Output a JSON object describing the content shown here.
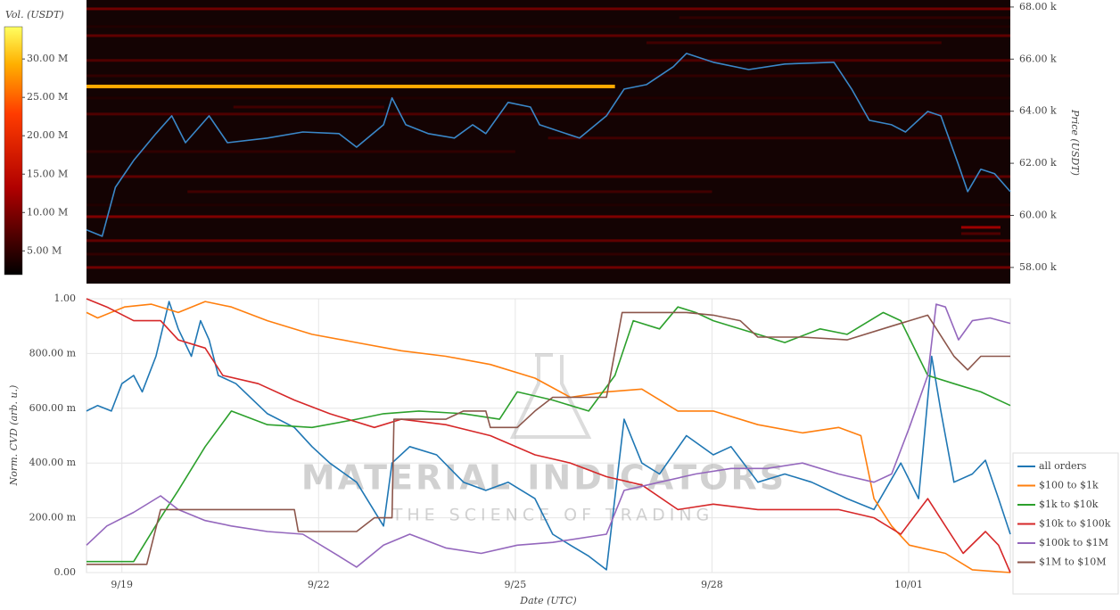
{
  "chart_data": [
    {
      "type": "heatmap",
      "y_label": "Price (USDT)",
      "xlim": [
        -0.54,
        13.55
      ],
      "ylim": [
        57380,
        68270
      ],
      "yticks": [
        {
          "value": 58000,
          "label": "58.00 k"
        },
        {
          "value": 60000,
          "label": "60.00 k"
        },
        {
          "value": 62000,
          "label": "62.00 k"
        },
        {
          "value": 64000,
          "label": "64.00 k"
        },
        {
          "value": 66000,
          "label": "66.00 k"
        },
        {
          "value": 68000,
          "label": "68.00 k"
        }
      ],
      "colorbar": {
        "title": "Vol. (USDT)",
        "clim": [
          1900000,
          34200000
        ],
        "ticks": [
          {
            "value": 5000000,
            "label": "5.00 M"
          },
          {
            "value": 10000000,
            "label": "10.00 M"
          },
          {
            "value": 15000000,
            "label": "15.00 M"
          },
          {
            "value": 20000000,
            "label": "20.00 M"
          },
          {
            "value": 25000000,
            "label": "25.00 M"
          },
          {
            "value": 30000000,
            "label": "30.00 M"
          }
        ]
      },
      "bands": [
        {
          "price": 67930,
          "volume": 9000000,
          "x": [
            -0.54,
            13.55
          ]
        },
        {
          "price": 67590,
          "volume": 5000000,
          "x": [
            8.5,
            13.55
          ]
        },
        {
          "price": 67250,
          "volume": 4000000,
          "x": [
            -0.54,
            13.55
          ]
        },
        {
          "price": 66900,
          "volume": 8000000,
          "x": [
            -0.54,
            13.55
          ]
        },
        {
          "price": 66630,
          "volume": 6000000,
          "x": [
            8.0,
            12.5
          ]
        },
        {
          "price": 65950,
          "volume": 7000000,
          "x": [
            -0.54,
            13.55
          ]
        },
        {
          "price": 65360,
          "volume": 5000000,
          "x": [
            -0.54,
            13.55
          ]
        },
        {
          "price": 64950,
          "volume": 29000000,
          "x": [
            -0.54,
            7.52
          ]
        },
        {
          "price": 64510,
          "volume": 4000000,
          "x": [
            -0.54,
            13.55
          ]
        },
        {
          "price": 64160,
          "volume": 6000000,
          "x": [
            1.7,
            4.0
          ]
        },
        {
          "price": 63890,
          "volume": 7000000,
          "x": [
            -0.54,
            13.55
          ]
        },
        {
          "price": 62970,
          "volume": 6000000,
          "x": [
            6.5,
            13.55
          ]
        },
        {
          "price": 62450,
          "volume": 5000000,
          "x": [
            -0.54,
            6.0
          ]
        },
        {
          "price": 61490,
          "volume": 8000000,
          "x": [
            -0.54,
            13.55
          ]
        },
        {
          "price": 60910,
          "volume": 6000000,
          "x": [
            1.0,
            9.0
          ]
        },
        {
          "price": 60400,
          "volume": 4000000,
          "x": [
            -0.54,
            13.55
          ]
        },
        {
          "price": 59950,
          "volume": 10000000,
          "x": [
            -0.54,
            13.55
          ]
        },
        {
          "price": 59540,
          "volume": 12000000,
          "x": [
            12.8,
            13.4
          ]
        },
        {
          "price": 59300,
          "volume": 7000000,
          "x": [
            12.8,
            13.4
          ]
        },
        {
          "price": 59030,
          "volume": 8000000,
          "x": [
            -0.54,
            13.55
          ]
        },
        {
          "price": 58510,
          "volume": 5000000,
          "x": [
            -0.54,
            13.55
          ]
        },
        {
          "price": 58000,
          "volume": 9000000,
          "x": [
            -0.54,
            13.55
          ]
        }
      ],
      "series": [
        {
          "color": "#3a87c8",
          "x": [
            -0.54,
            -0.3,
            -0.1,
            0.18,
            0.52,
            0.76,
            0.97,
            1.33,
            1.61,
            2.22,
            2.76,
            3.31,
            3.58,
            3.99,
            4.12,
            4.33,
            4.67,
            5.07,
            5.35,
            5.55,
            5.89,
            6.23,
            6.37,
            6.98,
            7.39,
            7.66,
            8.0,
            8.41,
            8.61,
            9.02,
            9.56,
            10.11,
            10.86,
            11.13,
            11.4,
            11.74,
            11.95,
            12.29,
            12.49,
            12.76,
            12.9,
            13.1,
            13.31,
            13.55
          ],
          "values": [
            59440,
            59200,
            61080,
            62110,
            63140,
            63820,
            62790,
            63820,
            62790,
            62970,
            63200,
            63140,
            62620,
            63480,
            64510,
            63480,
            63140,
            62970,
            63480,
            63140,
            64340,
            64160,
            63480,
            62970,
            63820,
            64850,
            65020,
            65710,
            66220,
            65880,
            65600,
            65810,
            65880,
            64850,
            63650,
            63480,
            63200,
            63990,
            63820,
            61940,
            60910,
            61770,
            61600,
            60910
          ]
        }
      ]
    },
    {
      "type": "line",
      "x_label": "Date (UTC)",
      "y_label": "Norm. CVD (arb. u.)",
      "xlim": [
        -0.54,
        13.55
      ],
      "ylim": [
        0,
        1
      ],
      "xticks": [
        {
          "value": 0,
          "label": "9/19"
        },
        {
          "value": 3,
          "label": "9/22"
        },
        {
          "value": 6,
          "label": "9/25"
        },
        {
          "value": 9,
          "label": "9/28"
        },
        {
          "value": 12,
          "label": "10/01"
        }
      ],
      "yticks": [
        {
          "value": 0,
          "label": "0.00"
        },
        {
          "value": 0.2,
          "label": "200.00 m"
        },
        {
          "value": 0.4,
          "label": "400.00 m"
        },
        {
          "value": 0.6,
          "label": "600.00 m"
        },
        {
          "value": 0.8,
          "label": "800.00 m"
        },
        {
          "value": 1,
          "label": "1.00"
        }
      ],
      "grid": true,
      "legend": "right",
      "watermark": [
        "MATERIAL INDICATORS",
        "THE SCIENCE OF TRADING"
      ],
      "series": [
        {
          "name": "all orders",
          "color": "#1f77b4",
          "x": [
            -0.54,
            -0.37,
            -0.16,
            0,
            0.18,
            0.31,
            0.52,
            0.72,
            0.86,
            1.06,
            1.2,
            1.33,
            1.47,
            1.74,
            2.22,
            2.63,
            2.9,
            3.17,
            3.58,
            3.99,
            4.12,
            4.39,
            4.8,
            5.21,
            5.55,
            5.89,
            6.3,
            6.57,
            6.84,
            7.12,
            7.39,
            7.66,
            7.93,
            8.2,
            8.61,
            9.02,
            9.29,
            9.7,
            10.11,
            10.52,
            11.06,
            11.47,
            11.88,
            12.15,
            12.35,
            12.49,
            12.69,
            12.97,
            13.17,
            13.37,
            13.55
          ],
          "values": [
            0.59,
            0.61,
            0.59,
            0.69,
            0.72,
            0.66,
            0.79,
            0.99,
            0.89,
            0.79,
            0.92,
            0.85,
            0.72,
            0.69,
            0.58,
            0.53,
            0.46,
            0.4,
            0.33,
            0.17,
            0.4,
            0.46,
            0.43,
            0.33,
            0.3,
            0.33,
            0.27,
            0.14,
            0.1,
            0.06,
            0.01,
            0.56,
            0.4,
            0.36,
            0.5,
            0.43,
            0.46,
            0.33,
            0.36,
            0.33,
            0.27,
            0.23,
            0.4,
            0.27,
            0.79,
            0.59,
            0.33,
            0.36,
            0.41,
            0.27,
            0.14
          ]
        },
        {
          "name": "$100 to $1k",
          "color": "#ff7f0e",
          "x": [
            -0.54,
            -0.37,
            0.04,
            0.45,
            0.86,
            1.27,
            1.67,
            2.22,
            2.9,
            3.58,
            4.26,
            4.94,
            5.62,
            6.3,
            6.84,
            7.39,
            7.93,
            8.48,
            9.02,
            9.7,
            10.38,
            10.93,
            11.27,
            11.47,
            11.74,
            12.01,
            12.56,
            12.97,
            13.55
          ],
          "values": [
            0.95,
            0.93,
            0.97,
            0.98,
            0.95,
            0.99,
            0.97,
            0.92,
            0.87,
            0.84,
            0.81,
            0.79,
            0.76,
            0.71,
            0.64,
            0.66,
            0.67,
            0.59,
            0.59,
            0.54,
            0.51,
            0.53,
            0.5,
            0.27,
            0.17,
            0.1,
            0.07,
            0.01,
            0.0
          ]
        },
        {
          "name": "$1k to $10k",
          "color": "#2ca02c",
          "x": [
            -0.54,
            0.18,
            0.59,
            0.86,
            1.27,
            1.67,
            2.22,
            2.9,
            3.58,
            3.99,
            4.53,
            5.21,
            5.76,
            6.03,
            6.57,
            7.12,
            7.52,
            7.8,
            8.2,
            8.48,
            8.75,
            9.02,
            9.7,
            10.11,
            10.65,
            11.06,
            11.61,
            11.88,
            12.29,
            12.69,
            13.1,
            13.55
          ],
          "values": [
            0.04,
            0.04,
            0.2,
            0.3,
            0.46,
            0.59,
            0.54,
            0.53,
            0.56,
            0.58,
            0.59,
            0.58,
            0.56,
            0.66,
            0.63,
            0.59,
            0.72,
            0.92,
            0.89,
            0.97,
            0.95,
            0.92,
            0.87,
            0.84,
            0.89,
            0.87,
            0.95,
            0.92,
            0.72,
            0.69,
            0.66,
            0.61
          ]
        },
        {
          "name": "$10k to $100k",
          "color": "#d62728",
          "x": [
            -0.54,
            -0.23,
            0.18,
            0.59,
            0.86,
            1.27,
            1.54,
            2.08,
            2.63,
            3.17,
            3.85,
            4.26,
            4.94,
            5.62,
            6.3,
            6.84,
            7.39,
            7.93,
            8.48,
            9.02,
            9.7,
            10.38,
            10.93,
            11.47,
            11.88,
            12.29,
            12.56,
            12.83,
            13.17,
            13.37,
            13.55
          ],
          "values": [
            1.0,
            0.97,
            0.92,
            0.92,
            0.85,
            0.82,
            0.72,
            0.69,
            0.63,
            0.58,
            0.53,
            0.56,
            0.54,
            0.5,
            0.43,
            0.4,
            0.35,
            0.32,
            0.23,
            0.25,
            0.23,
            0.23,
            0.23,
            0.2,
            0.14,
            0.27,
            0.17,
            0.07,
            0.15,
            0.1,
            0.0
          ]
        },
        {
          "name": "$100k to $1M",
          "color": "#9467bd",
          "x": [
            -0.54,
            -0.23,
            0.18,
            0.59,
            0.86,
            1.27,
            1.67,
            2.22,
            2.76,
            3.31,
            3.58,
            3.99,
            4.39,
            4.94,
            5.48,
            6.03,
            6.57,
            7.39,
            7.66,
            8.2,
            8.75,
            9.29,
            9.84,
            10.38,
            10.93,
            11.47,
            11.74,
            12.01,
            12.29,
            12.42,
            12.56,
            12.76,
            12.97,
            13.24,
            13.55
          ],
          "values": [
            0.1,
            0.17,
            0.22,
            0.28,
            0.23,
            0.19,
            0.17,
            0.15,
            0.14,
            0.06,
            0.02,
            0.1,
            0.14,
            0.09,
            0.07,
            0.1,
            0.11,
            0.14,
            0.3,
            0.33,
            0.36,
            0.38,
            0.38,
            0.4,
            0.36,
            0.33,
            0.36,
            0.53,
            0.72,
            0.98,
            0.97,
            0.85,
            0.92,
            0.93,
            0.91
          ]
        },
        {
          "name": "$1M to $10M",
          "color": "#8c564b",
          "x": [
            -0.54,
            0.38,
            0.59,
            2.63,
            2.69,
            3.58,
            3.85,
            4.12,
            4.15,
            4.94,
            5.21,
            5.55,
            5.62,
            6.03,
            6.3,
            6.57,
            7.39,
            7.63,
            8.61,
            9.02,
            9.43,
            9.7,
            10.38,
            11.06,
            11.74,
            12.29,
            12.69,
            12.9,
            13.1,
            13.55
          ],
          "values": [
            0.03,
            0.03,
            0.23,
            0.23,
            0.15,
            0.15,
            0.2,
            0.2,
            0.56,
            0.56,
            0.59,
            0.59,
            0.53,
            0.53,
            0.59,
            0.64,
            0.64,
            0.95,
            0.95,
            0.94,
            0.92,
            0.86,
            0.86,
            0.85,
            0.9,
            0.94,
            0.79,
            0.74,
            0.79,
            0.79
          ]
        }
      ]
    }
  ]
}
